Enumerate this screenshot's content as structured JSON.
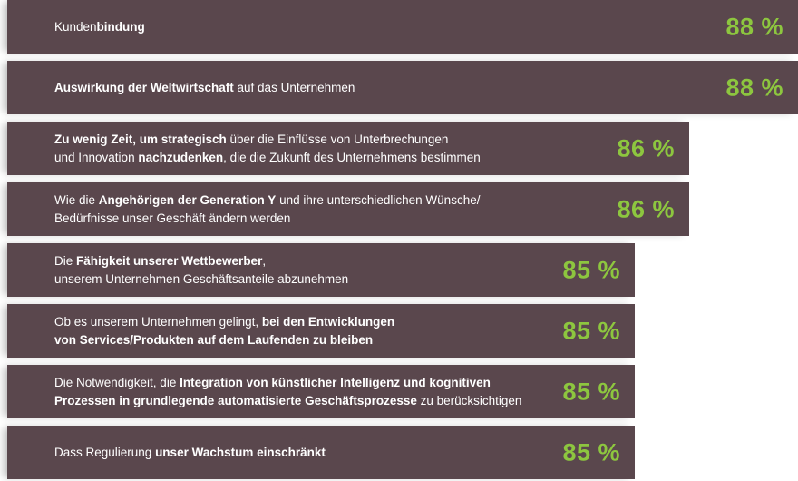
{
  "chart_data": {
    "type": "bar",
    "orientation": "horizontal",
    "value_suffix": " %",
    "colors": {
      "bar": "#5a474d",
      "value": "#8dc63f",
      "label": "#ffffff"
    },
    "categories": [
      [
        {
          "t": "Kunden",
          "b": false
        },
        {
          "t": "bindung",
          "b": true
        }
      ],
      [
        {
          "t": "Auswirkung der Weltwirtschaft",
          "b": true
        },
        {
          "t": " auf das Unternehmen",
          "b": false
        }
      ],
      [
        {
          "t": "Zu wenig Zeit, um strategisch",
          "b": true
        },
        {
          "t": " über die Einflüsse von Unterbrechungen",
          "b": false
        },
        {
          "br": true
        },
        {
          "t": "und Innovation ",
          "b": false
        },
        {
          "t": "nachzudenken",
          "b": true
        },
        {
          "t": ", die die Zukunft des Unternehmens bestimmen",
          "b": false
        }
      ],
      [
        {
          "t": "Wie die ",
          "b": false
        },
        {
          "t": "Angehörigen der Generation Y",
          "b": true
        },
        {
          "t": " und ihre unterschiedlichen Wünsche/",
          "b": false
        },
        {
          "br": true
        },
        {
          "t": "Bedürfnisse unser Geschäft ändern werden",
          "b": false
        }
      ],
      [
        {
          "t": "Die ",
          "b": false
        },
        {
          "t": "Fähigkeit unserer Wettbewerber",
          "b": true
        },
        {
          "t": ",",
          "b": false
        },
        {
          "br": true
        },
        {
          "t": "unserem Unternehmen Geschäftsanteile abzunehmen",
          "b": false
        }
      ],
      [
        {
          "t": "Ob es unserem Unternehmen gelingt, ",
          "b": false
        },
        {
          "t": "bei den Entwicklungen",
          "b": true
        },
        {
          "br": true
        },
        {
          "t": "von Services/Produkten auf dem Laufenden zu bleiben",
          "b": true
        }
      ],
      [
        {
          "t": "Die Notwendigkeit, die ",
          "b": false
        },
        {
          "t": "Integration von künstlicher Intelligenz und kognitiven",
          "b": true
        },
        {
          "br": true
        },
        {
          "t": "Prozessen in grundlegende automatisierte Geschäftsprozesse",
          "b": true
        },
        {
          "t": " zu berücksichtigen",
          "b": false
        }
      ],
      [
        {
          "t": "Dass Regulierung ",
          "b": false
        },
        {
          "t": "unser Wachstum einschränkt",
          "b": true
        }
      ]
    ],
    "values": [
      88,
      88,
      86,
      86,
      85,
      85,
      85,
      85
    ]
  }
}
